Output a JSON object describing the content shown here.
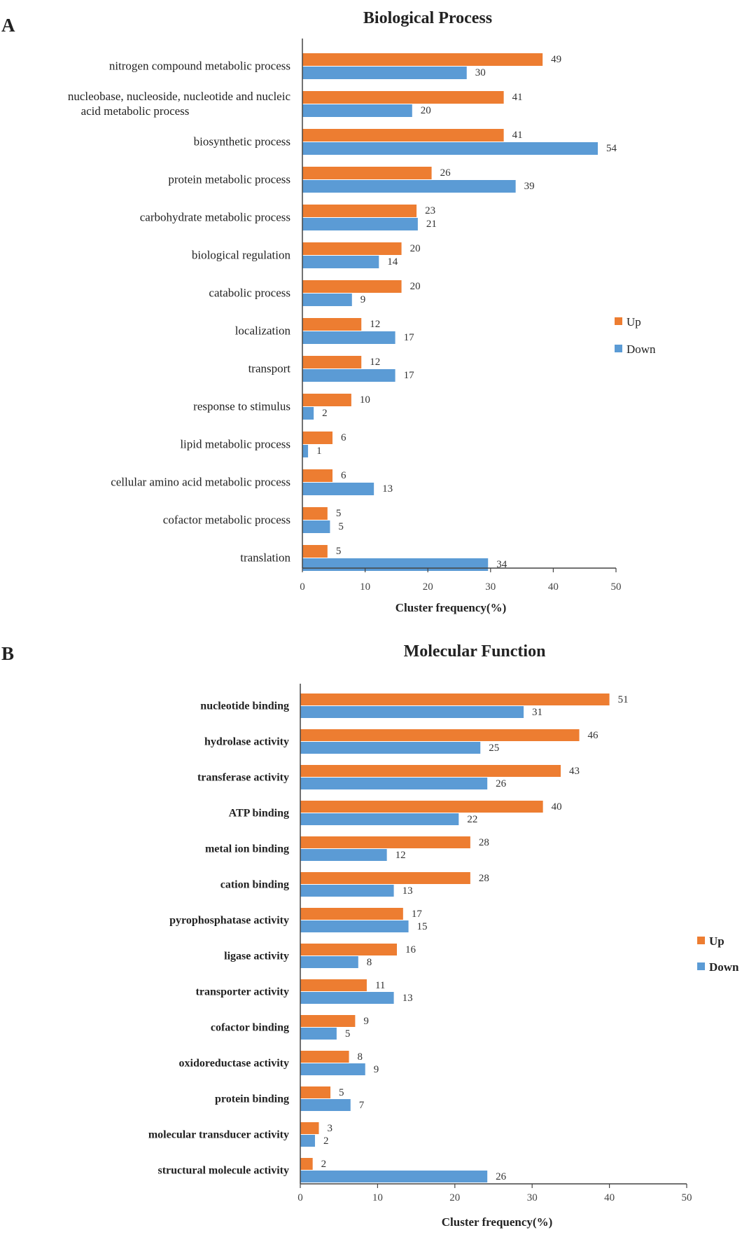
{
  "colors": {
    "up": "#ED7D31",
    "down": "#5B9BD5",
    "axis": "#444444"
  },
  "chart_data": [
    {
      "panel": "A",
      "type": "bar",
      "orientation": "horizontal",
      "title": "Biological Process",
      "xlabel": "Cluster frequency(%)",
      "ylabel": "",
      "xlim": [
        0,
        50
      ],
      "xticks": [
        0,
        10,
        20,
        30,
        40,
        50
      ],
      "legend": "right",
      "categories": [
        [
          "nitrogen compound metabolic process"
        ],
        [
          "nucleobase, nucleoside, nucleotide and nucleic",
          "acid metabolic process"
        ],
        [
          "biosynthetic process"
        ],
        [
          "protein metabolic process"
        ],
        [
          "carbohydrate metabolic process"
        ],
        [
          "biological regulation"
        ],
        [
          "catabolic process"
        ],
        [
          "localization"
        ],
        [
          "transport"
        ],
        [
          "response to stimulus"
        ],
        [
          "lipid metabolic process"
        ],
        [
          "cellular amino acid metabolic process"
        ],
        [
          "cofactor metabolic process"
        ],
        [
          "translation"
        ]
      ],
      "series": [
        {
          "name": "Up",
          "values": [
            49,
            41,
            41,
            26,
            23,
            20,
            20,
            12,
            12,
            10,
            6,
            6,
            5,
            5
          ],
          "bar_values": [
            38.3,
            32.1,
            32.1,
            20.6,
            18.2,
            15.8,
            15.8,
            9.4,
            9.4,
            7.8,
            4.8,
            4.8,
            4.0,
            4.0
          ]
        },
        {
          "name": "Down",
          "values": [
            30,
            20,
            54,
            39,
            21,
            14,
            9,
            17,
            17,
            2,
            1,
            13,
            5,
            34
          ],
          "bar_values": [
            26.2,
            17.5,
            47.1,
            34.0,
            18.4,
            12.2,
            7.9,
            14.8,
            14.8,
            1.8,
            0.9,
            11.4,
            4.4,
            29.6
          ]
        }
      ]
    },
    {
      "panel": "B",
      "type": "bar",
      "orientation": "horizontal",
      "title": "Molecular Function",
      "xlabel": "Cluster frequency(%)",
      "ylabel": "",
      "xlim": [
        0,
        50
      ],
      "xticks": [
        0,
        10,
        20,
        30,
        40,
        50
      ],
      "legend": "right",
      "categories": [
        [
          "nucleotide binding"
        ],
        [
          "hydrolase activity"
        ],
        [
          "transferase activity"
        ],
        [
          "ATP binding"
        ],
        [
          "metal ion binding"
        ],
        [
          "cation binding"
        ],
        [
          "pyrophosphatase activity"
        ],
        [
          "ligase activity"
        ],
        [
          "transporter activity"
        ],
        [
          "cofactor binding"
        ],
        [
          "oxidoreductase activity"
        ],
        [
          "protein binding"
        ],
        [
          "molecular transducer activity"
        ],
        [
          "structural molecule activity"
        ]
      ],
      "series": [
        {
          "name": "Up",
          "values": [
            51,
            46,
            43,
            40,
            28,
            28,
            17,
            16,
            11,
            9,
            8,
            5,
            3,
            2
          ],
          "bar_values": [
            40.0,
            36.1,
            33.7,
            31.4,
            22.0,
            22.0,
            13.3,
            12.5,
            8.6,
            7.1,
            6.3,
            3.9,
            2.4,
            1.6
          ]
        },
        {
          "name": "Down",
          "values": [
            31,
            25,
            26,
            22,
            12,
            13,
            15,
            8,
            13,
            5,
            9,
            7,
            2,
            26
          ],
          "bar_values": [
            28.9,
            23.3,
            24.2,
            20.5,
            11.2,
            12.1,
            14.0,
            7.5,
            12.1,
            4.7,
            8.4,
            6.5,
            1.9,
            24.2
          ]
        }
      ]
    }
  ]
}
